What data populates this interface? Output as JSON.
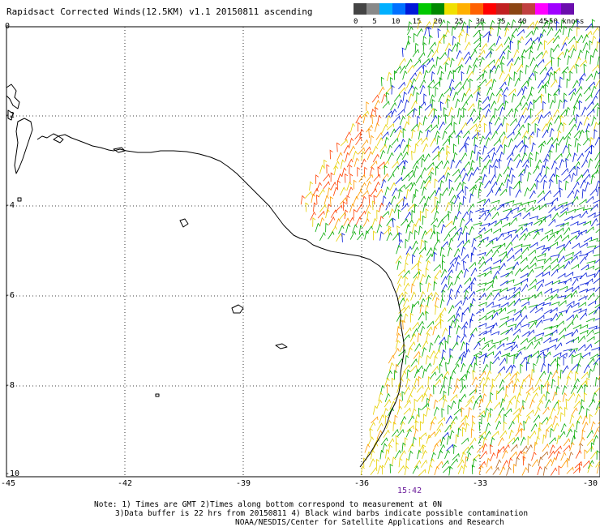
{
  "title": "Rapidsact Corrected Winds(12.5KM) v1.1 20150811 ascending",
  "legend": {
    "colors": [
      "#444444",
      "#888888",
      "#00b0ff",
      "#0070ff",
      "#0018d8",
      "#00c800",
      "#008800",
      "#f0e000",
      "#ffb000",
      "#ff6000",
      "#ff0000",
      "#c02020",
      "#8b4513",
      "#c04040",
      "#ff00ff",
      "#a000ff",
      "#6a0dad"
    ],
    "labels": [
      "0",
      "5",
      "10",
      "15",
      "20",
      "25",
      "30",
      "35",
      "40",
      "45",
      ">50 knots"
    ],
    "speed_colors": {
      "lt10": "#00b0ff",
      "10_15": "#0018d8",
      "15_20": "#00a800",
      "20_25": "#e6d000",
      "25_30": "#ff9a00",
      "30_35": "#ff4000",
      "35_40": "#b5651d"
    }
  },
  "map": {
    "lat_labels": [
      "0",
      "-2",
      "-4",
      "-6",
      "-8",
      "-10"
    ],
    "lon_labels": [
      "-45",
      "-42",
      "-39",
      "-36",
      "-33",
      "-30"
    ],
    "time_label": "15:42"
  },
  "notes": {
    "line1": "Note: 1) Times are GMT 2)Times along bottom correspond to measurement at 0N",
    "line2": "3)Data buffer is 22 hrs from 20150811 4) Black wind barbs indicate possible contamination",
    "line3": "NOAA/NESDIS/Center for Satellite Applications and Research"
  }
}
